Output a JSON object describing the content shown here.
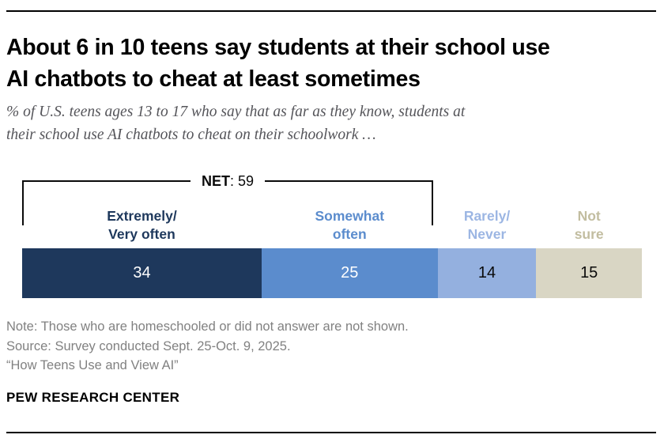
{
  "header": {
    "title": "About 6 in 10 teens say students at their school use\nAI chatbots to cheat at least sometimes",
    "subtitle": "% of U.S. teens ages 13 to 17 who say that as far as they know, students at\ntheir school use AI chatbots to cheat on their schoolwork …"
  },
  "chart_data": {
    "type": "bar",
    "variant": "horizontal-stacked-single-bar",
    "unit": "% of U.S. teens ages 13 to 17",
    "categories": [
      "Extremely/\nVery often",
      "Somewhat\noften",
      "Rarely/\nNever",
      "Not\nsure"
    ],
    "values": [
      34,
      25,
      14,
      15
    ],
    "net": {
      "label": "NET",
      "value": 59,
      "suffix": ": 59",
      "covers": [
        "Extremely/Very often",
        "Somewhat often"
      ]
    },
    "segment_colors": [
      "#1e385c",
      "#5b8ccd",
      "#94b0df",
      "#d9d6c4"
    ],
    "value_text_colors": [
      "#ffffff",
      "#ffffff",
      "#0a0a0a",
      "#0a0a0a"
    ],
    "category_text_colors": [
      "#1e385c",
      "#5b8ccd",
      "#9cb6e3",
      "#c2bda0"
    ],
    "legend_position": "above-bar",
    "axis": "none"
  },
  "footer": {
    "note": "Note: Those who are homeschooled or did not answer are not shown.",
    "source": "Source: Survey conducted Sept. 25-Oct. 9, 2025.",
    "report": "“How Teens Use and View AI”",
    "brand": "PEW RESEARCH CENTER"
  }
}
